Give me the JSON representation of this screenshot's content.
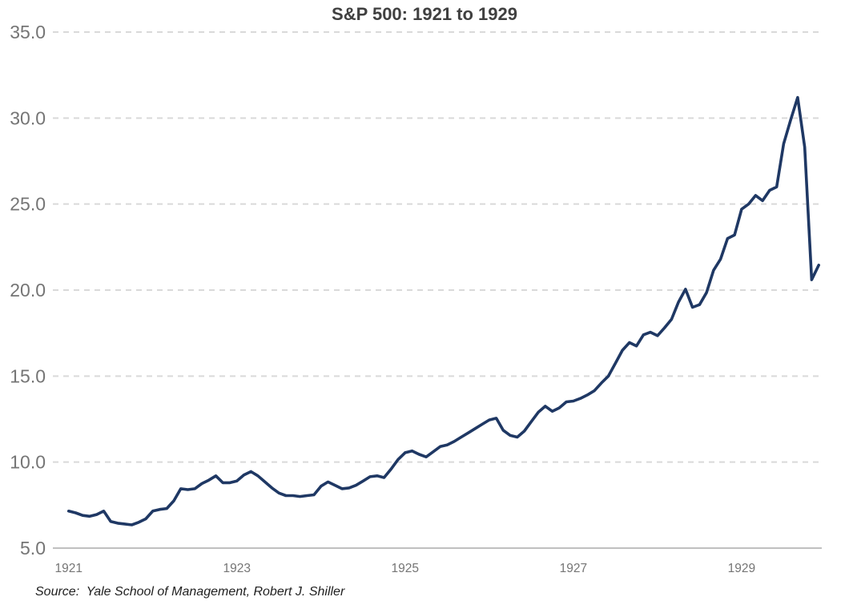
{
  "chart_data": {
    "type": "line",
    "title": "S&P 500: 1921 to 1929",
    "source_note": "Source:  Yale School of Management, Robert J. Shiller",
    "xlabel": "",
    "ylabel": "",
    "ylim": [
      5.0,
      35.0
    ],
    "y_ticks": [
      5,
      10,
      15,
      20,
      25,
      30,
      35
    ],
    "y_tick_labels": [
      "5.0",
      "10.0",
      "15.0",
      "20.0",
      "25.0",
      "30.0",
      "35.0"
    ],
    "x_tick_labels": [
      "1921",
      "1923",
      "1925",
      "1927",
      "1929"
    ],
    "x_tick_month_indices": [
      0,
      24,
      48,
      72,
      96
    ],
    "grid": {
      "horizontal": true,
      "style": "dashed",
      "color": "#d9d9d9"
    },
    "axis_line_color": "#c0c0c0",
    "tick_label_color": "#757575",
    "title_color": "#404040",
    "source_color": "#1f1f1f",
    "line_color": "#1f3864",
    "legend": "none",
    "series": [
      {
        "name": "S&P 500",
        "frequency": "monthly",
        "start": "1921-01",
        "end": "1929-12",
        "values": [
          7.15,
          7.05,
          6.9,
          6.85,
          6.95,
          7.15,
          6.55,
          6.45,
          6.4,
          6.35,
          6.5,
          6.7,
          7.15,
          7.25,
          7.3,
          7.75,
          8.45,
          8.4,
          8.45,
          8.75,
          8.95,
          9.2,
          8.8,
          8.8,
          8.9,
          9.25,
          9.45,
          9.2,
          8.85,
          8.5,
          8.2,
          8.05,
          8.05,
          8.0,
          8.05,
          8.1,
          8.6,
          8.85,
          8.65,
          8.45,
          8.5,
          8.65,
          8.9,
          9.15,
          9.2,
          9.1,
          9.6,
          10.15,
          10.55,
          10.65,
          10.45,
          10.3,
          10.6,
          10.9,
          11.0,
          11.2,
          11.45,
          11.7,
          11.95,
          12.2,
          12.45,
          12.55,
          11.85,
          11.55,
          11.45,
          11.8,
          12.35,
          12.9,
          13.25,
          12.95,
          13.15,
          13.5,
          13.55,
          13.7,
          13.9,
          14.15,
          14.6,
          15.0,
          15.75,
          16.5,
          16.95,
          16.75,
          17.4,
          17.55,
          17.35,
          17.8,
          18.3,
          19.3,
          20.05,
          19.0,
          19.15,
          19.85,
          21.15,
          21.8,
          23.0,
          23.2,
          24.7,
          25.0,
          25.5,
          25.2,
          25.8,
          26.0,
          28.5,
          29.9,
          31.2,
          28.3,
          20.6,
          21.45
        ]
      }
    ]
  }
}
